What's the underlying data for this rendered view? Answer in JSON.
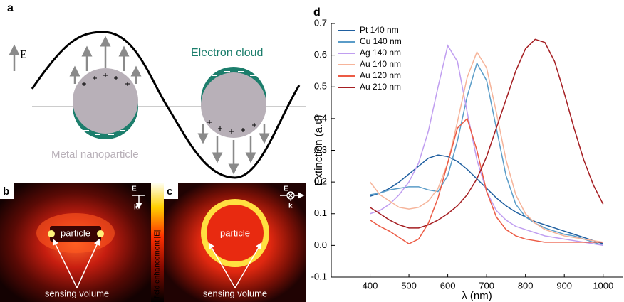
{
  "panel_a": {
    "label": "a",
    "field_label": "E",
    "cloud_label": "Electron cloud",
    "particle_label": "Metal nanoparticle"
  },
  "panel_b": {
    "label": "b",
    "particle": "particle",
    "sensing": "sensing volume",
    "e": "E",
    "k": "k"
  },
  "panel_c": {
    "label": "c",
    "particle": "particle",
    "sensing": "sensing volume",
    "e": "E",
    "k": "k"
  },
  "colorbar_label": "field enhancement |E|",
  "panel_d_label": "d",
  "chart_data": {
    "type": "line",
    "x_label": "λ (nm)",
    "y_label": "Extinction (a.u)",
    "x": [
      400,
      425,
      450,
      475,
      500,
      525,
      550,
      575,
      600,
      625,
      650,
      675,
      700,
      725,
      750,
      775,
      800,
      825,
      850,
      875,
      900,
      925,
      950,
      975,
      1000
    ],
    "series": [
      {
        "name": "Pt 140 nm",
        "color": "#1f5fa0",
        "values": [
          0.155,
          0.165,
          0.18,
          0.2,
          0.225,
          0.25,
          0.275,
          0.285,
          0.28,
          0.265,
          0.24,
          0.21,
          0.18,
          0.15,
          0.125,
          0.105,
          0.09,
          0.075,
          0.065,
          0.055,
          0.045,
          0.035,
          0.025,
          0.015,
          0.005
        ]
      },
      {
        "name": "Cu 140 nm",
        "color": "#5a9cc8",
        "values": [
          0.16,
          0.165,
          0.175,
          0.18,
          0.185,
          0.185,
          0.175,
          0.17,
          0.22,
          0.33,
          0.47,
          0.575,
          0.52,
          0.37,
          0.22,
          0.13,
          0.09,
          0.07,
          0.055,
          0.045,
          0.035,
          0.03,
          0.02,
          0.01,
          0
        ]
      },
      {
        "name": "Ag 140 nm",
        "color": "#c09ef0",
        "values": [
          0.1,
          0.11,
          0.13,
          0.16,
          0.2,
          0.26,
          0.36,
          0.5,
          0.63,
          0.58,
          0.42,
          0.27,
          0.17,
          0.11,
          0.08,
          0.06,
          0.05,
          0.04,
          0.03,
          0.025,
          0.02,
          0.015,
          0.01,
          0.005,
          0
        ]
      },
      {
        "name": "Au 140 nm",
        "color": "#f6b49a",
        "values": [
          0.2,
          0.16,
          0.14,
          0.12,
          0.115,
          0.12,
          0.14,
          0.18,
          0.26,
          0.39,
          0.53,
          0.61,
          0.56,
          0.42,
          0.27,
          0.16,
          0.1,
          0.07,
          0.05,
          0.04,
          0.03,
          0.025,
          0.02,
          0.015,
          0.01
        ]
      },
      {
        "name": "Au 120 nm",
        "color": "#ec5b45",
        "values": [
          0.08,
          0.06,
          0.045,
          0.025,
          0.005,
          0.02,
          0.07,
          0.15,
          0.26,
          0.37,
          0.4,
          0.3,
          0.17,
          0.09,
          0.05,
          0.03,
          0.02,
          0.015,
          0.01,
          0.01,
          0.01,
          0.01,
          0.01,
          0.01,
          0.01
        ]
      },
      {
        "name": "Au 210 nm",
        "color": "#a51e22",
        "values": [
          0.12,
          0.1,
          0.08,
          0.065,
          0.055,
          0.055,
          0.065,
          0.08,
          0.1,
          0.125,
          0.16,
          0.21,
          0.28,
          0.37,
          0.46,
          0.55,
          0.62,
          0.65,
          0.64,
          0.58,
          0.48,
          0.37,
          0.27,
          0.19,
          0.13
        ]
      }
    ],
    "xlim": [
      300,
      1050
    ],
    "ylim": [
      -0.1,
      0.7
    ],
    "xticks": [
      400,
      500,
      600,
      700,
      800,
      900,
      1000
    ],
    "yticks": [
      -0.1,
      {
        "value": 0,
        "label": "0.0"
      },
      0.1,
      0.2,
      0.3,
      0.4,
      0.5,
      0.6,
      0.7
    ],
    "legend": "upper left"
  }
}
